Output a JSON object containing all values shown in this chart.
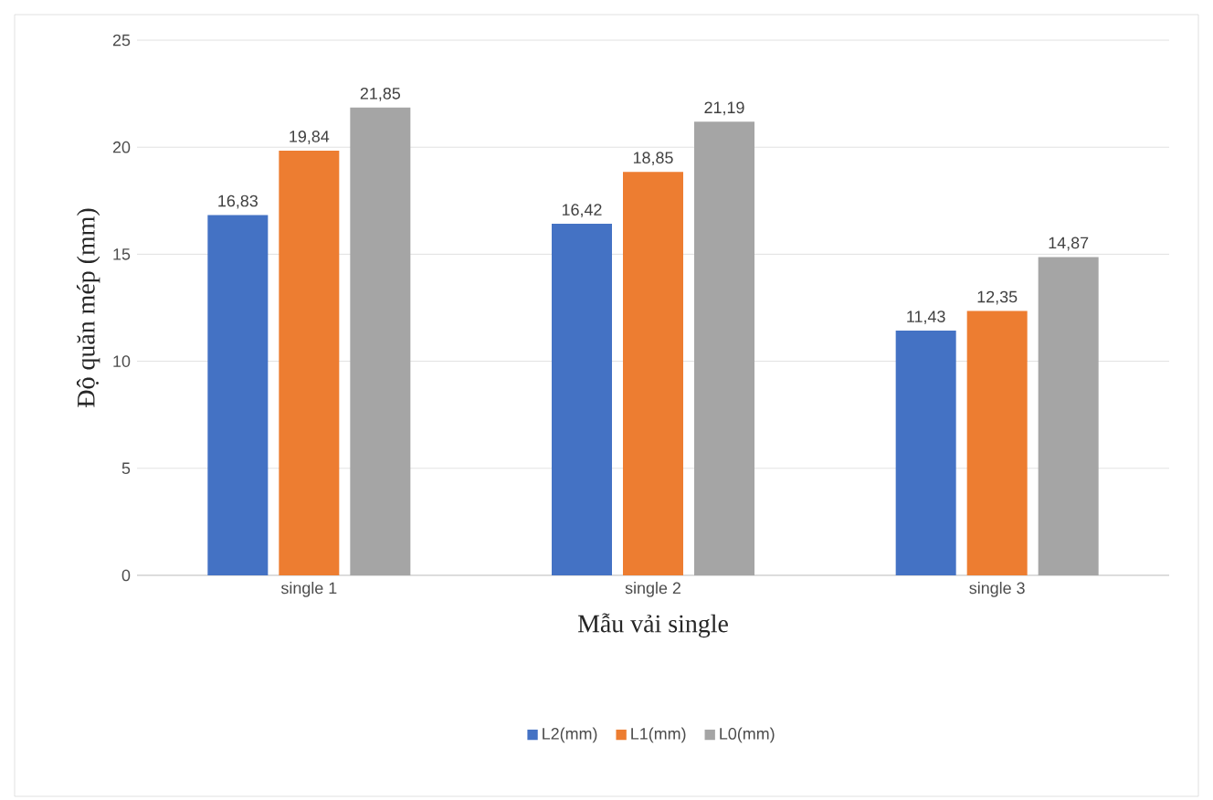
{
  "chart_data": {
    "type": "bar",
    "xlabel": "Mẫu vải single",
    "ylabel": "Độ quăn mép (mm)",
    "categories": [
      "single 1",
      "single 2",
      "single 3"
    ],
    "series": [
      {
        "name": "L2(mm)",
        "color": "#4472c4",
        "values": [
          16.83,
          16.42,
          11.43
        ],
        "value_labels": [
          "16,83",
          "16,42",
          "11,43"
        ]
      },
      {
        "name": "L1(mm)",
        "color": "#ed7d31",
        "values": [
          19.84,
          18.85,
          12.35
        ],
        "value_labels": [
          "19,84",
          "18,85",
          "12,35"
        ]
      },
      {
        "name": "L0(mm)",
        "color": "#a5a5a5",
        "values": [
          21.85,
          21.19,
          14.87
        ],
        "value_labels": [
          "21,85",
          "21,19",
          "14,87"
        ]
      }
    ],
    "ylim": [
      0,
      25
    ],
    "yticks": [
      0,
      5,
      10,
      15,
      20,
      25
    ],
    "grid": "y",
    "legend": "bottom"
  }
}
